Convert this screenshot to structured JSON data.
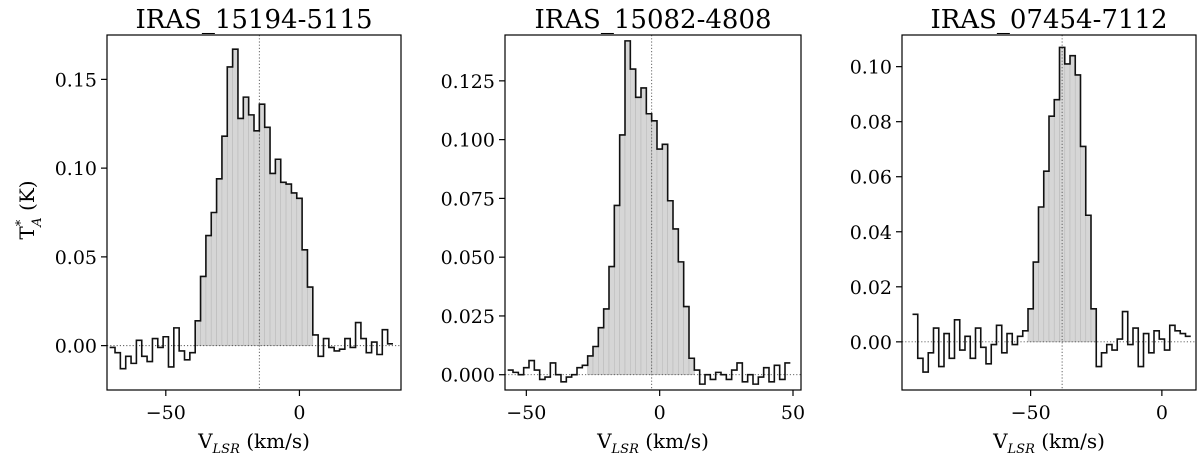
{
  "figure": {
    "ylabel_main": "T",
    "ylabel_sup": "*",
    "ylabel_sub": "A",
    "ylabel_unit": " (K)"
  },
  "chart_data": [
    {
      "type": "step",
      "title": "IRAS_15194-5115",
      "xlabel_main": "V",
      "xlabel_sub": "LSR",
      "xlabel_unit": " (km/s)",
      "ylabel": "T*A (K)",
      "xlim": [
        -72,
        38
      ],
      "ylim": [
        -0.025,
        0.175
      ],
      "xticks": [
        -50,
        0
      ],
      "xtick_labels": [
        "−50",
        "0"
      ],
      "yticks": [
        0.0,
        0.05,
        0.1,
        0.15
      ],
      "ytick_labels": [
        "0.00",
        "0.05",
        "0.10",
        "0.15"
      ],
      "vline": -15,
      "baseline": 0,
      "fill_range": [
        -38,
        5
      ],
      "x": [
        -70,
        -68,
        -66,
        -64,
        -62,
        -60,
        -58,
        -56,
        -54,
        -52,
        -50,
        -48,
        -46,
        -44,
        -42,
        -40,
        -38,
        -36,
        -34,
        -32,
        -30,
        -28,
        -26,
        -24,
        -22,
        -20,
        -18,
        -16,
        -14,
        -12,
        -10,
        -8,
        -6,
        -4,
        -2,
        0,
        2,
        4,
        6,
        8,
        10,
        12,
        14,
        16,
        18,
        20,
        22,
        24,
        26,
        28,
        30,
        32,
        34
      ],
      "y": [
        -0.001,
        -0.004,
        -0.013,
        -0.006,
        -0.01,
        0.003,
        -0.006,
        -0.009,
        0.004,
        -0.001,
        0.005,
        -0.012,
        0.01,
        -0.003,
        -0.008,
        -0.004,
        0.014,
        0.039,
        0.062,
        0.075,
        0.094,
        0.118,
        0.157,
        0.167,
        0.128,
        0.14,
        0.13,
        0.121,
        0.136,
        0.123,
        0.097,
        0.105,
        0.092,
        0.091,
        0.086,
        0.083,
        0.054,
        0.033,
        0.006,
        -0.006,
        0.004,
        -0.001,
        -0.003,
        -0.002,
        0.004,
        -0.001,
        0.013,
        0.004,
        -0.004,
        0.002,
        -0.005,
        0.009,
        0.001
      ],
      "grid": false
    },
    {
      "type": "step",
      "title": "IRAS_15082-4808",
      "xlabel_main": "V",
      "xlabel_sub": "LSR",
      "xlabel_unit": " (km/s)",
      "xlim": [
        -58,
        53
      ],
      "ylim": [
        -0.0065,
        0.1445
      ],
      "xticks": [
        -50,
        0,
        50
      ],
      "xtick_labels": [
        "−50",
        "0",
        "50"
      ],
      "yticks": [
        0.0,
        0.025,
        0.05,
        0.075,
        0.1,
        0.125
      ],
      "ytick_labels": [
        "0.000",
        "0.025",
        "0.050",
        "0.075",
        "0.100",
        "0.125"
      ],
      "vline": -3,
      "baseline": 0,
      "fill_range": [
        -27,
        12
      ],
      "x": [
        -56,
        -54,
        -52,
        -50,
        -48,
        -46,
        -44,
        -42,
        -40,
        -38,
        -36,
        -34,
        -32,
        -30,
        -28,
        -26,
        -24,
        -22,
        -20,
        -18,
        -16,
        -14,
        -12,
        -10,
        -8,
        -6,
        -4,
        -2,
        0,
        2,
        4,
        6,
        8,
        10,
        12,
        14,
        16,
        18,
        20,
        22,
        24,
        26,
        28,
        30,
        32,
        34,
        36,
        38,
        40,
        42,
        44,
        46,
        48
      ],
      "y": [
        0.002,
        0.001,
        0.0,
        0.003,
        0.006,
        0.002,
        -0.002,
        -0.001,
        0.005,
        0.0,
        -0.003,
        -0.001,
        0.0,
        0.003,
        0.004,
        0.008,
        0.012,
        0.02,
        0.028,
        0.046,
        0.072,
        0.102,
        0.142,
        0.13,
        0.118,
        0.122,
        0.111,
        0.108,
        0.096,
        0.098,
        0.074,
        0.062,
        0.048,
        0.029,
        0.007,
        0.002,
        -0.004,
        0.0,
        -0.002,
        0.001,
        0.0,
        -0.002,
        0.002,
        0.005,
        -0.003,
        0.0,
        -0.004,
        -0.001,
        0.003,
        -0.003,
        0.004,
        -0.002,
        0.005
      ],
      "grid": false
    },
    {
      "type": "step",
      "title": "IRAS_07454-7112",
      "xlabel_main": "V",
      "xlabel_sub": "LSR",
      "xlabel_unit": " (km/s)",
      "xlim": [
        -99,
        13
      ],
      "ylim": [
        -0.0175,
        0.1115
      ],
      "xticks": [
        -50,
        0
      ],
      "xtick_labels": [
        "−50",
        "0"
      ],
      "yticks": [
        0.0,
        0.02,
        0.04,
        0.06,
        0.08,
        0.1
      ],
      "ytick_labels": [
        "0.00",
        "0.02",
        "0.04",
        "0.06",
        "0.08",
        "0.10"
      ],
      "vline": -38,
      "baseline": 0,
      "fill_range": [
        -50,
        -25
      ],
      "x": [
        -94,
        -92,
        -90,
        -88,
        -86,
        -84,
        -82,
        -80,
        -78,
        -76,
        -74,
        -72,
        -70,
        -68,
        -66,
        -64,
        -62,
        -60,
        -58,
        -56,
        -54,
        -52,
        -50,
        -48,
        -46,
        -44,
        -42,
        -40,
        -38,
        -36,
        -34,
        -32,
        -30,
        -28,
        -26,
        -24,
        -22,
        -20,
        -18,
        -16,
        -14,
        -12,
        -10,
        -8,
        -6,
        -4,
        -2,
        0,
        2,
        4,
        6,
        8,
        10
      ],
      "y": [
        0.01,
        -0.006,
        -0.011,
        -0.004,
        0.005,
        -0.009,
        0.003,
        -0.006,
        0.008,
        -0.003,
        0.002,
        -0.006,
        0.005,
        -0.002,
        -0.008,
        -0.001,
        0.006,
        -0.004,
        0.003,
        -0.001,
        0.002,
        0.004,
        0.012,
        0.029,
        0.049,
        0.062,
        0.082,
        0.088,
        0.107,
        0.101,
        0.104,
        0.097,
        0.071,
        0.046,
        0.012,
        -0.009,
        -0.004,
        -0.001,
        -0.003,
        0.001,
        0.011,
        -0.001,
        0.005,
        -0.009,
        0.003,
        -0.004,
        0.004,
        0.001,
        -0.003,
        0.006,
        0.004,
        0.003,
        0.002
      ],
      "grid": false
    }
  ]
}
